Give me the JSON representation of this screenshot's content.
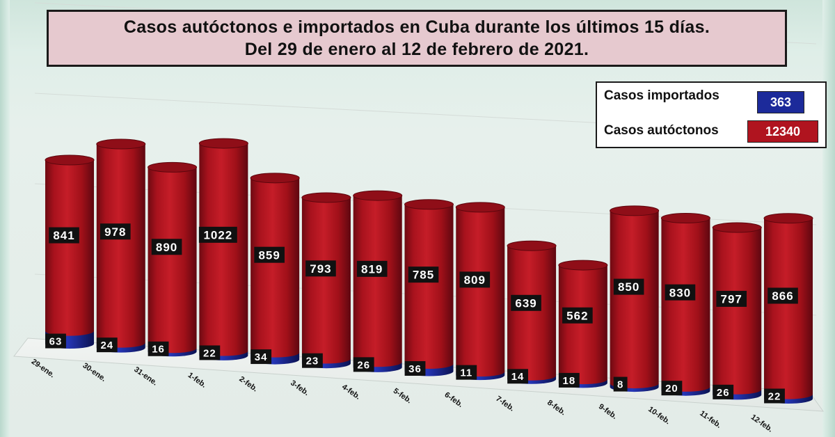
{
  "title": {
    "line1": "Casos autóctonos e importados en Cuba durante los últimos 15 días.",
    "line2": "Del 29 de enero al 12 de febrero de 2021."
  },
  "legend": {
    "imported_label": "Casos importados",
    "imported_total": "363",
    "local_label": "Casos autóctonos",
    "local_total": "12340"
  },
  "colors": {
    "local": "#b0141f",
    "imported": "#1c2a9a",
    "label_bg": "#111111"
  },
  "chart_data": {
    "type": "bar",
    "categories": [
      "29-ene.",
      "30-ene.",
      "31-ene.",
      "1-feb.",
      "2-feb.",
      "3-feb.",
      "4-feb.",
      "5-feb.",
      "6-feb.",
      "7-feb.",
      "8-feb.",
      "9-feb.",
      "10-feb.",
      "11-feb.",
      "12-feb."
    ],
    "series": [
      {
        "name": "Casos autóctonos",
        "values": [
          841,
          978,
          890,
          1022,
          859,
          793,
          819,
          785,
          809,
          639,
          562,
          850,
          830,
          797,
          866
        ]
      },
      {
        "name": "Casos importados",
        "values": [
          63,
          24,
          16,
          22,
          34,
          23,
          26,
          36,
          11,
          14,
          18,
          8,
          20,
          26,
          22
        ]
      }
    ],
    "stacked": true,
    "style": "3d-cylinder",
    "legend_position": "top-right"
  }
}
